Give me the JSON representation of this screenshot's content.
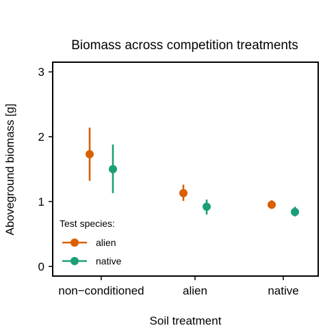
{
  "chart_data": {
    "type": "scatter",
    "title": "Biomass across competition treatments",
    "xlabel": "Soil treatment",
    "ylabel": "Aboveground biomass [g]",
    "categories": [
      "non−conditioned",
      "alien",
      "native"
    ],
    "ylim": [
      -0.15,
      3.15
    ],
    "yticks": [
      0,
      1,
      2,
      3
    ],
    "grid": false,
    "legend": {
      "title": "Test species:",
      "position": "bottom-left"
    },
    "series": [
      {
        "name": "alien",
        "color": "#d95f02",
        "points": [
          {
            "x": "non−conditioned",
            "y": 1.73,
            "low": 1.32,
            "high": 2.14
          },
          {
            "x": "alien",
            "y": 1.13,
            "low": 1.01,
            "high": 1.26
          },
          {
            "x": "native",
            "y": 0.95,
            "low": 0.89,
            "high": 1.02
          }
        ]
      },
      {
        "name": "native",
        "color": "#1b9e77",
        "points": [
          {
            "x": "non−conditioned",
            "y": 1.5,
            "low": 1.13,
            "high": 1.88
          },
          {
            "x": "alien",
            "y": 0.92,
            "low": 0.8,
            "high": 1.03
          },
          {
            "x": "native",
            "y": 0.84,
            "low": 0.77,
            "high": 0.92
          }
        ]
      }
    ]
  }
}
